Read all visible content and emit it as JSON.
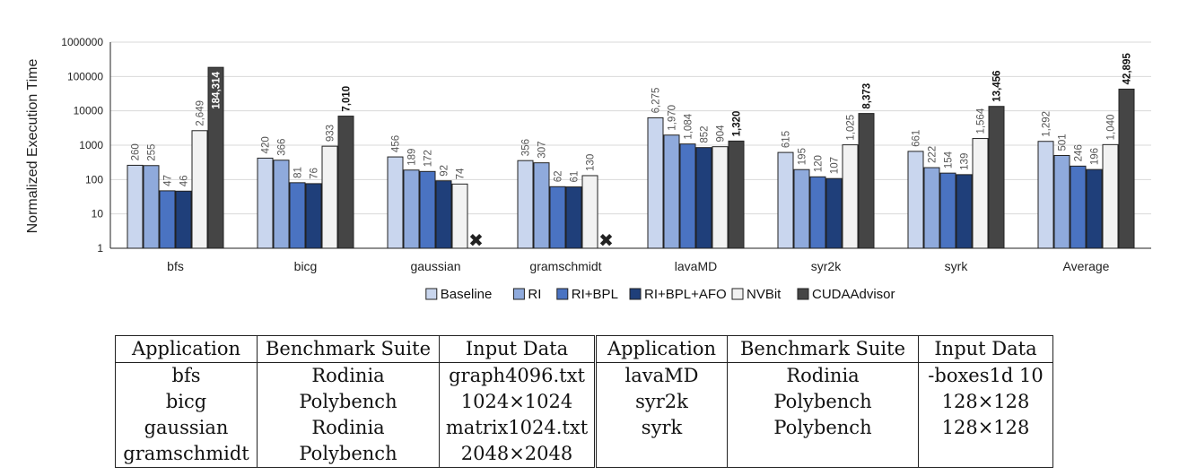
{
  "chart_data": {
    "type": "bar",
    "ylabel": "Normalized Execution Time",
    "yscale": "log",
    "ylim": [
      1,
      1000000
    ],
    "yticks": [
      "1",
      "10",
      "100",
      "1000",
      "10000",
      "100000",
      "1000000"
    ],
    "categories": [
      "bfs",
      "bicg",
      "gaussian",
      "gramschmidt",
      "lavaMD",
      "syr2k",
      "syrk",
      "Average"
    ],
    "legend_position": "bottom",
    "series": [
      {
        "name": "Baseline",
        "color": "#c9d6ee",
        "values": [
          260,
          420,
          456,
          356,
          6275,
          615,
          661,
          1292
        ],
        "labels": [
          "260",
          "420",
          "456",
          "356",
          "6,275",
          "615",
          "661",
          "1,292"
        ]
      },
      {
        "name": "RI",
        "color": "#8faadc",
        "values": [
          255,
          366,
          189,
          307,
          1970,
          195,
          222,
          501
        ],
        "labels": [
          "255",
          "366",
          "189",
          "307",
          "1,970",
          "195",
          "222",
          "501"
        ]
      },
      {
        "name": "RI+BPL",
        "color": "#4a73c2",
        "values": [
          47,
          81,
          172,
          62,
          1084,
          120,
          154,
          246
        ],
        "labels": [
          "47",
          "81",
          "172",
          "62",
          "1,084",
          "120",
          "154",
          "246"
        ]
      },
      {
        "name": "RI+BPL+AFO",
        "color": "#1f3f7a",
        "values": [
          46,
          76,
          92,
          61,
          852,
          107,
          139,
          196
        ],
        "labels": [
          "46",
          "76",
          "92",
          "61",
          "852",
          "107",
          "139",
          "196"
        ]
      },
      {
        "name": "NVBit",
        "color": "#f2f2f2",
        "values": [
          2649,
          933,
          74,
          130,
          904,
          1025,
          1564,
          1040
        ],
        "labels": [
          "2,649",
          "933",
          "74",
          "130",
          "904",
          "1,025",
          "1,564",
          "1,040"
        ]
      },
      {
        "name": "CUDAAdvisor",
        "color": "#454545",
        "values": [
          184314,
          7010,
          null,
          null,
          1320,
          8373,
          13456,
          42895
        ],
        "labels": [
          "184,314",
          "7,010",
          "",
          "",
          "1,320",
          "8,373",
          "13,456",
          "42,895"
        ]
      }
    ],
    "missing_marker": "✖"
  },
  "table": {
    "headers": [
      "Application",
      "Benchmark Suite",
      "Input Data",
      "Application",
      "Benchmark Suite",
      "Input Data"
    ],
    "rows": [
      [
        "bfs",
        "Rodinia",
        "graph4096.txt",
        "lavaMD",
        "Rodinia",
        "-boxes1d 10"
      ],
      [
        "bicg",
        "Polybench",
        "1024×1024",
        "syr2k",
        "Polybench",
        "128×128"
      ],
      [
        "gaussian",
        "Rodinia",
        "matrix1024.txt",
        "syrk",
        "Polybench",
        "128×128"
      ],
      [
        "gramschmidt",
        "Polybench",
        "2048×2048",
        "",
        "",
        ""
      ]
    ]
  }
}
